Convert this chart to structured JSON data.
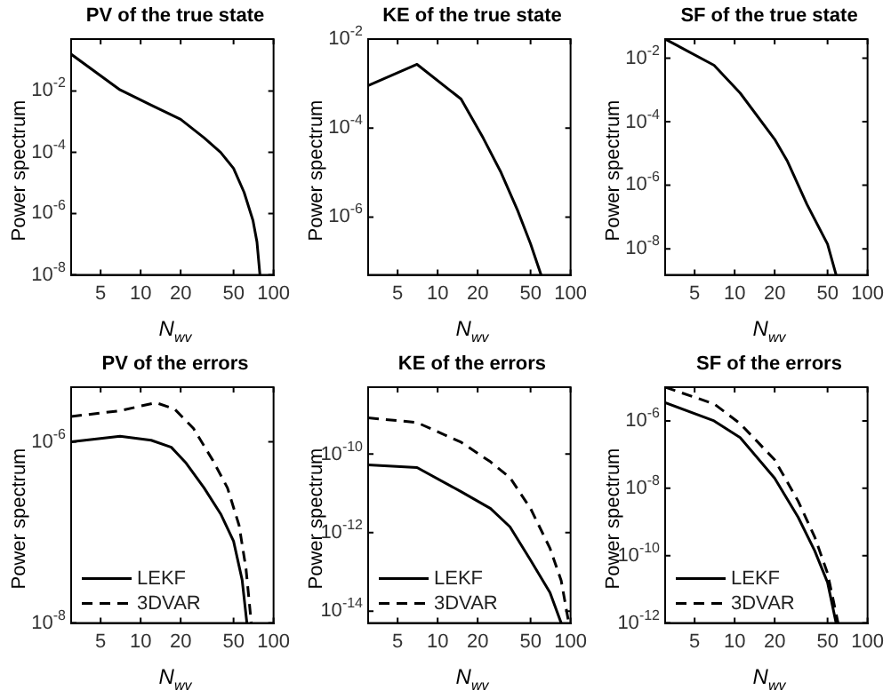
{
  "chart_data": [
    {
      "type": "line",
      "title": "PV of the true state",
      "xlabel": "N$_{wv}$",
      "ylabel": "Power spectrum",
      "log": "xy",
      "grid": false,
      "xlim": [
        3,
        100
      ],
      "xticks": [
        5,
        10,
        20,
        50,
        100
      ],
      "ylim": [
        1e-08,
        0.5
      ],
      "yticks": [
        {
          "value": 1e-08,
          "label": "10$^{-8}$"
        },
        {
          "value": 1e-06,
          "label": "10$^{-6}$"
        },
        {
          "value": 0.0001,
          "label": "10$^{-4}$"
        },
        {
          "value": 0.01,
          "label": "10$^{-2}$"
        }
      ],
      "x": [
        3,
        7,
        12,
        20,
        30,
        40,
        50,
        60,
        70,
        75,
        79
      ],
      "series": [
        {
          "color": "#000000",
          "line_style": "solid",
          "values": [
            0.16,
            0.011,
            0.0035,
            0.0012,
            0.0003,
            0.0001,
            3e-05,
            5e-06,
            6e-07,
            1.2e-07,
            1e-08
          ]
        }
      ]
    },
    {
      "type": "line",
      "title": "KE of the true state",
      "xlabel": "N$_{wv}$",
      "ylabel": "Power spectrum",
      "log": "xy",
      "grid": false,
      "xlim": [
        3,
        100
      ],
      "xticks": [
        5,
        10,
        20,
        50,
        100
      ],
      "ylim": [
        5e-08,
        0.01
      ],
      "yticks": [
        {
          "value": 1e-06,
          "label": "10$^{-6}$"
        },
        {
          "value": 0.0001,
          "label": "10$^{-4}$"
        },
        {
          "value": 0.01,
          "label": "10$^{-2}$"
        }
      ],
      "x": [
        3,
        7,
        15,
        22,
        30,
        40,
        50,
        60
      ],
      "series": [
        {
          "color": "#000000",
          "line_style": "solid",
          "values": [
            0.0009,
            0.0027,
            0.00045,
            6e-05,
            1e-05,
            1.4e-06,
            2.5e-07,
            5e-08
          ]
        }
      ]
    },
    {
      "type": "line",
      "title": "SF of the true state",
      "xlabel": "N$_{wv}$",
      "ylabel": "Power spectrum",
      "log": "xy",
      "grid": false,
      "xlim": [
        3,
        100
      ],
      "xticks": [
        5,
        10,
        20,
        50,
        100
      ],
      "ylim": [
        1.5e-09,
        0.04
      ],
      "yticks": [
        {
          "value": 1e-08,
          "label": "10$^{-8}$"
        },
        {
          "value": 1e-06,
          "label": "10$^{-6}$"
        },
        {
          "value": 0.0001,
          "label": "10$^{-4}$"
        },
        {
          "value": 0.01,
          "label": "10$^{-2}$"
        }
      ],
      "x": [
        3,
        7,
        11,
        20,
        25,
        35,
        50,
        58
      ],
      "series": [
        {
          "color": "#000000",
          "line_style": "solid",
          "values": [
            0.04,
            0.006,
            0.0008,
            2.8e-05,
            5.6e-06,
            2.5e-07,
            1.4e-08,
            1.5e-09
          ]
        }
      ]
    },
    {
      "type": "line",
      "title": "PV of the errors",
      "xlabel": "N$_{wv}$",
      "ylabel": "Power spectrum",
      "log": "xy",
      "grid": false,
      "legend": "bottom left",
      "xlim": [
        3,
        100
      ],
      "xticks": [
        5,
        10,
        20,
        50,
        100
      ],
      "ylim": [
        1e-08,
        4e-06
      ],
      "yticks": [
        {
          "value": 1e-08,
          "label": "10$^{-8}$"
        },
        {
          "value": 1e-06,
          "label": "10$^{-6}$"
        }
      ],
      "series": [
        {
          "name": "LEKF",
          "color": "#000000",
          "line_style": "solid",
          "x": [
            3,
            7,
            12,
            17,
            22,
            30,
            40,
            50,
            58,
            63
          ],
          "values": [
            1e-06,
            1.15e-06,
            1.04e-06,
            8.7e-07,
            5.8e-07,
            3.1e-07,
            1.6e-07,
            8e-08,
            3e-08,
            1e-08
          ]
        },
        {
          "name": "3DVAR",
          "color": "#000000",
          "line_style": "dashed",
          "x": [
            3,
            7,
            13,
            18,
            25,
            35,
            45,
            55,
            62,
            68
          ],
          "values": [
            1.9e-06,
            2.2e-06,
            2.7e-06,
            2.3e-06,
            1.4e-06,
            6.2e-07,
            3.1e-07,
            1.2e-07,
            4e-08,
            1e-08
          ]
        }
      ]
    },
    {
      "type": "line",
      "title": "KE of the errors",
      "xlabel": "N$_{wv}$",
      "ylabel": "Power spectrum",
      "log": "xy",
      "grid": false,
      "legend": "bottom left",
      "xlim": [
        3,
        100
      ],
      "xticks": [
        5,
        10,
        20,
        50,
        100
      ],
      "ylim": [
        5e-15,
        5e-09
      ],
      "yticks": [
        {
          "value": 1e-14,
          "label": "10$^{-14}$"
        },
        {
          "value": 1e-12,
          "label": "10$^{-12}$"
        },
        {
          "value": 1e-10,
          "label": "10$^{-10}$"
        }
      ],
      "series": [
        {
          "name": "LEKF",
          "color": "#000000",
          "line_style": "solid",
          "x": [
            3,
            7,
            15,
            25,
            35,
            50,
            70,
            85
          ],
          "values": [
            5.3e-11,
            4.5e-11,
            1.1e-11,
            4.1e-12,
            1.4e-12,
            2e-13,
            3e-14,
            5e-15
          ]
        },
        {
          "name": "3DVAR",
          "color": "#000000",
          "line_style": "dashed",
          "x": [
            3,
            7,
            15,
            25,
            35,
            50,
            70,
            85,
            97
          ],
          "values": [
            8.3e-10,
            6.3e-10,
            2e-10,
            6.3e-11,
            2.5e-11,
            4.1e-12,
            4e-13,
            6e-14,
            5e-15
          ]
        }
      ]
    },
    {
      "type": "line",
      "title": "SF of the errors",
      "xlabel": "N$_{wv}$",
      "ylabel": "Power spectrum",
      "log": "xy",
      "grid": false,
      "legend": "bottom left",
      "xlim": [
        3,
        100
      ],
      "xticks": [
        5,
        10,
        20,
        50,
        100
      ],
      "ylim": [
        1e-12,
        1e-05
      ],
      "yticks": [
        {
          "value": 1e-12,
          "label": "10$^{-12}$"
        },
        {
          "value": 1e-10,
          "label": "10$^{-10}$"
        },
        {
          "value": 1e-08,
          "label": "10$^{-8}$"
        },
        {
          "value": 1e-06,
          "label": "10$^{-6}$"
        }
      ],
      "series": [
        {
          "name": "LEKF",
          "color": "#000000",
          "line_style": "solid",
          "x": [
            3,
            7,
            11,
            20,
            30,
            40,
            50,
            58
          ],
          "values": [
            3.5e-06,
            1e-06,
            3.2e-07,
            2e-08,
            1.4e-09,
            1.4e-10,
            1.6e-11,
            1e-12
          ]
        },
        {
          "name": "3DVAR",
          "color": "#000000",
          "line_style": "dashed",
          "x": [
            3,
            7,
            11,
            20,
            30,
            40,
            50,
            60
          ],
          "values": [
            1e-05,
            3.2e-06,
            8.3e-07,
            7e-08,
            4.2e-09,
            3.6e-10,
            3e-11,
            1e-12
          ]
        }
      ]
    }
  ]
}
